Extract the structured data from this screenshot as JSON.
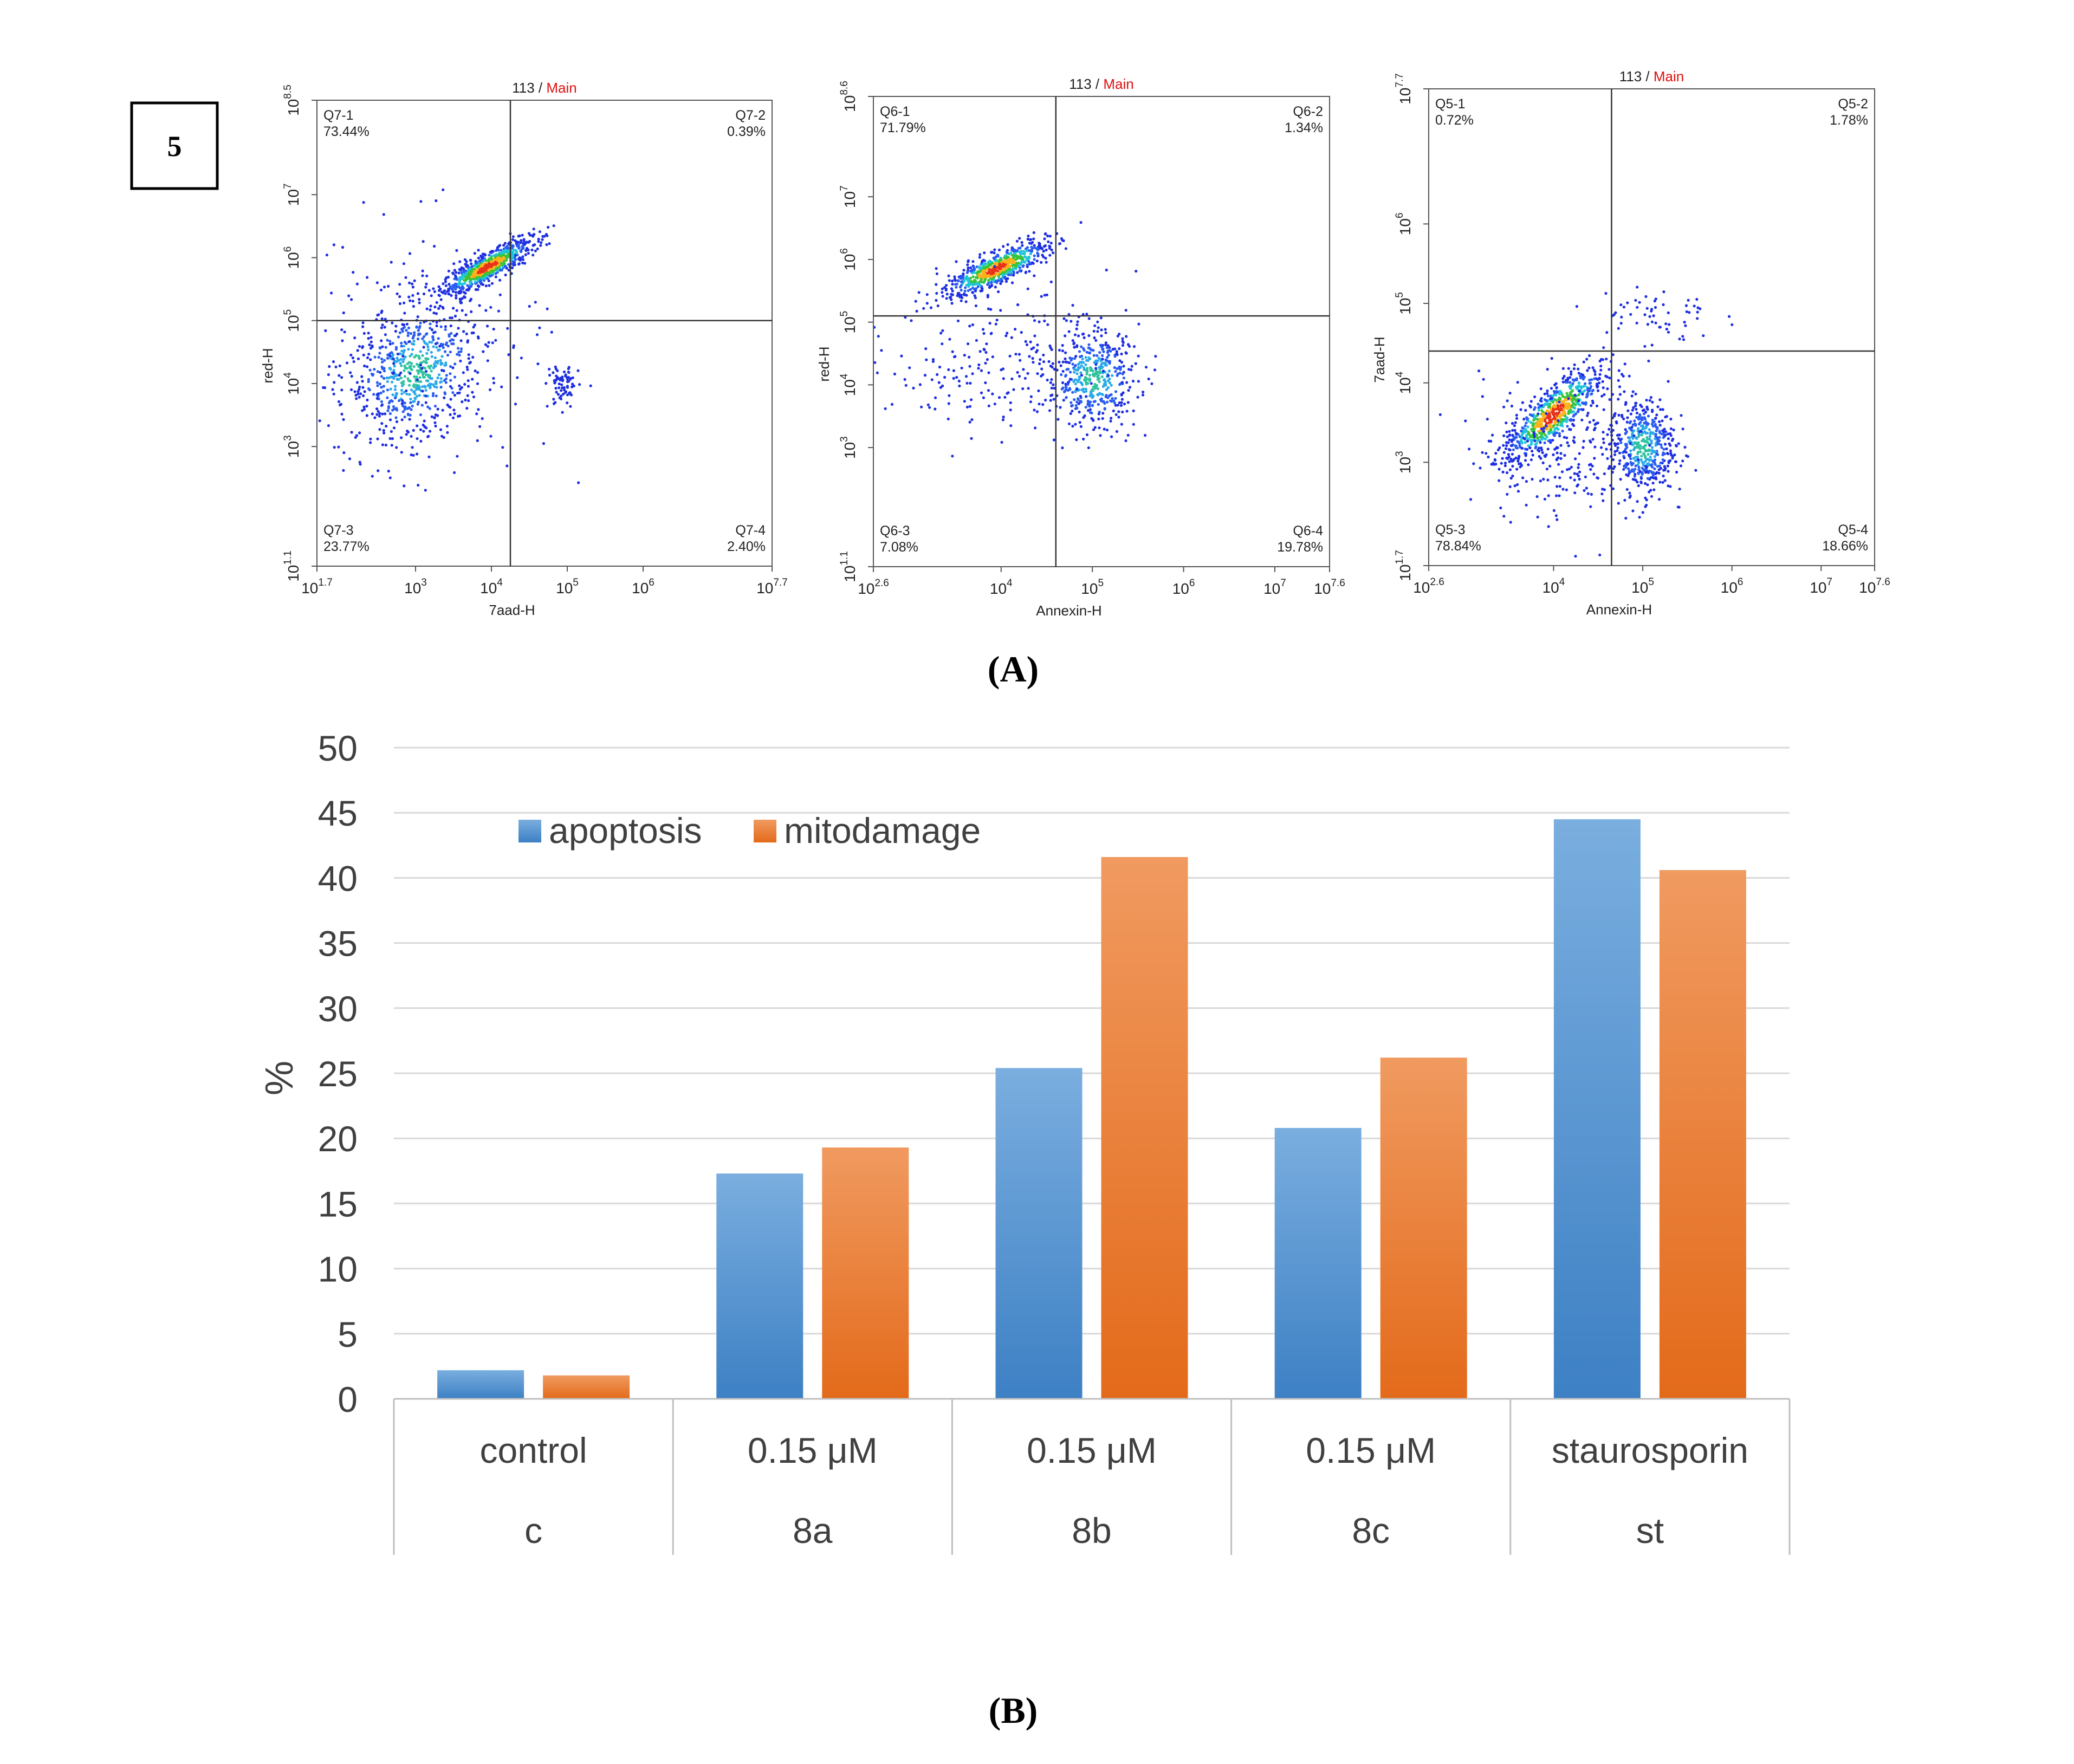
{
  "figure_number": "5",
  "panel_a_label": "(A)",
  "panel_b_label": "(B)",
  "colors": {
    "apoptosis_top": "#7aaedf",
    "apoptosis_bottom": "#3d80c4",
    "mitodamage_top": "#f09a60",
    "mitodamage_bottom": "#e36a1a",
    "gridline": "#d9d9d9",
    "axis": "#bfbfbf",
    "text": "#404040",
    "quadrant_line": "#333333",
    "main_red": "#e01010"
  },
  "chart_data": [
    {
      "type": "scatter",
      "panel": "A-1",
      "title_sample": "113",
      "title_sep": " / ",
      "title_gate": "Main",
      "xlabel": "7aad-H",
      "ylabel": "red-H",
      "x_log_range": [
        1.7,
        7.7
      ],
      "y_log_range": [
        1.1,
        8.5
      ],
      "x_ticks": [
        {
          "base": "10",
          "exp": "1.7"
        },
        {
          "base": "10",
          "exp": "3"
        },
        {
          "base": "10",
          "exp": "4"
        },
        {
          "base": "10",
          "exp": "5"
        },
        {
          "base": "10",
          "exp": "6"
        },
        {
          "base": "10",
          "exp": "7.7"
        }
      ],
      "y_ticks": [
        {
          "base": "10",
          "exp": "1.1"
        },
        {
          "base": "10",
          "exp": "3"
        },
        {
          "base": "10",
          "exp": "4"
        },
        {
          "base": "10",
          "exp": "5"
        },
        {
          "base": "10",
          "exp": "6"
        },
        {
          "base": "10",
          "exp": "7"
        },
        {
          "base": "10",
          "exp": "8.5"
        }
      ],
      "gate_x_log": 4.25,
      "gate_y_log": 5.0,
      "quadrants": [
        {
          "pos": "top-left",
          "name": "Q7-1",
          "pct": "73.44%"
        },
        {
          "pos": "top-right",
          "name": "Q7-2",
          "pct": "0.39%"
        },
        {
          "pos": "bottom-left",
          "name": "Q7-3",
          "pct": "23.77%"
        },
        {
          "pos": "bottom-right",
          "name": "Q7-4",
          "pct": "2.40%"
        }
      ],
      "clusters": [
        {
          "cx": 3.95,
          "cy": 5.85,
          "sx": 0.3,
          "sy": 0.22,
          "n": 700,
          "rho": 0.85
        },
        {
          "cx": 3.0,
          "cy": 4.2,
          "sx": 0.45,
          "sy": 0.55,
          "n": 650,
          "rho": 0.2
        },
        {
          "cx": 4.95,
          "cy": 3.95,
          "sx": 0.1,
          "sy": 0.18,
          "n": 70,
          "rho": 0.0
        },
        {
          "cx": 3.0,
          "cy": 4.5,
          "sx": 0.9,
          "sy": 1.0,
          "n": 180,
          "rho": 0.0
        }
      ]
    },
    {
      "type": "scatter",
      "panel": "A-2",
      "title_sample": "113",
      "title_sep": " / ",
      "title_gate": "Main",
      "xlabel": "Annexin-H",
      "ylabel": "red-H",
      "x_log_range": [
        2.6,
        7.6
      ],
      "y_log_range": [
        1.1,
        8.6
      ],
      "x_ticks": [
        {
          "base": "10",
          "exp": "2.6"
        },
        {
          "base": "10",
          "exp": "4"
        },
        {
          "base": "10",
          "exp": "5"
        },
        {
          "base": "10",
          "exp": "6"
        },
        {
          "base": "10",
          "exp": "7"
        },
        {
          "base": "10",
          "exp": "7.6"
        }
      ],
      "y_ticks": [
        {
          "base": "10",
          "exp": "1.1"
        },
        {
          "base": "10",
          "exp": "3"
        },
        {
          "base": "10",
          "exp": "4"
        },
        {
          "base": "10",
          "exp": "5"
        },
        {
          "base": "10",
          "exp": "6"
        },
        {
          "base": "10",
          "exp": "7"
        },
        {
          "base": "10",
          "exp": "8.6"
        }
      ],
      "gate_x_log": 4.6,
      "gate_y_log": 5.1,
      "quadrants": [
        {
          "pos": "top-left",
          "name": "Q6-1",
          "pct": "71.79%"
        },
        {
          "pos": "top-right",
          "name": "Q6-2",
          "pct": "1.34%"
        },
        {
          "pos": "bottom-left",
          "name": "Q6-3",
          "pct": "7.08%"
        },
        {
          "pos": "bottom-right",
          "name": "Q6-4",
          "pct": "19.78%"
        }
      ],
      "clusters": [
        {
          "cx": 3.95,
          "cy": 5.85,
          "sx": 0.28,
          "sy": 0.22,
          "n": 650,
          "rho": 0.8
        },
        {
          "cx": 5.0,
          "cy": 4.1,
          "sx": 0.25,
          "sy": 0.4,
          "n": 450,
          "rho": 0.0
        },
        {
          "cx": 4.0,
          "cy": 4.4,
          "sx": 0.6,
          "sy": 0.6,
          "n": 220,
          "rho": 0.0
        }
      ]
    },
    {
      "type": "scatter",
      "panel": "A-3",
      "title_sample": "113",
      "title_sep": " / ",
      "title_gate": "Main",
      "xlabel": "Annexin-H",
      "ylabel": "7aad-H",
      "x_log_range": [
        2.6,
        7.6
      ],
      "y_log_range": [
        1.7,
        7.7
      ],
      "x_ticks": [
        {
          "base": "10",
          "exp": "2.6"
        },
        {
          "base": "10",
          "exp": "4"
        },
        {
          "base": "10",
          "exp": "5"
        },
        {
          "base": "10",
          "exp": "6"
        },
        {
          "base": "10",
          "exp": "7"
        },
        {
          "base": "10",
          "exp": "7.6"
        }
      ],
      "y_ticks": [
        {
          "base": "10",
          "exp": "1.7"
        },
        {
          "base": "10",
          "exp": "3"
        },
        {
          "base": "10",
          "exp": "4"
        },
        {
          "base": "10",
          "exp": "5"
        },
        {
          "base": "10",
          "exp": "6"
        },
        {
          "base": "10",
          "exp": "7.7"
        }
      ],
      "gate_x_log": 4.65,
      "gate_y_log": 4.4,
      "quadrants": [
        {
          "pos": "top-left",
          "name": "Q5-1",
          "pct": "0.72%"
        },
        {
          "pos": "top-right",
          "name": "Q5-2",
          "pct": "1.78%"
        },
        {
          "pos": "bottom-left",
          "name": "Q5-3",
          "pct": "78.84%"
        },
        {
          "pos": "bottom-right",
          "name": "Q5-4",
          "pct": "18.66%"
        }
      ],
      "clusters": [
        {
          "cx": 4.0,
          "cy": 3.6,
          "sx": 0.28,
          "sy": 0.3,
          "n": 700,
          "rho": 0.8
        },
        {
          "cx": 5.0,
          "cy": 3.2,
          "sx": 0.18,
          "sy": 0.3,
          "n": 450,
          "rho": 0.0
        },
        {
          "cx": 4.2,
          "cy": 3.2,
          "sx": 0.5,
          "sy": 0.45,
          "n": 250,
          "rho": 0.0
        },
        {
          "cx": 5.1,
          "cy": 4.85,
          "sx": 0.35,
          "sy": 0.2,
          "n": 60,
          "rho": 0.0
        }
      ]
    },
    {
      "type": "bar",
      "panel": "B",
      "ylabel": "%",
      "ylim": [
        0,
        50
      ],
      "yticks": [
        0,
        5,
        10,
        15,
        20,
        25,
        30,
        35,
        40,
        45,
        50
      ],
      "grid": true,
      "legend_position": "top-left",
      "categories": [
        {
          "line1": "control",
          "line2": "c"
        },
        {
          "line1": "0.15 μM",
          "line2": "8a"
        },
        {
          "line1": "0.15 μM",
          "line2": "8b"
        },
        {
          "line1": "0.15 μM",
          "line2": "8c"
        },
        {
          "line1": "staurosporin",
          "line2": "st"
        }
      ],
      "series": [
        {
          "name": "apoptosis",
          "values": [
            2.2,
            17.3,
            25.4,
            20.8,
            44.5
          ]
        },
        {
          "name": "mitodamage",
          "values": [
            1.8,
            19.3,
            41.6,
            26.2,
            40.6
          ]
        }
      ]
    }
  ]
}
